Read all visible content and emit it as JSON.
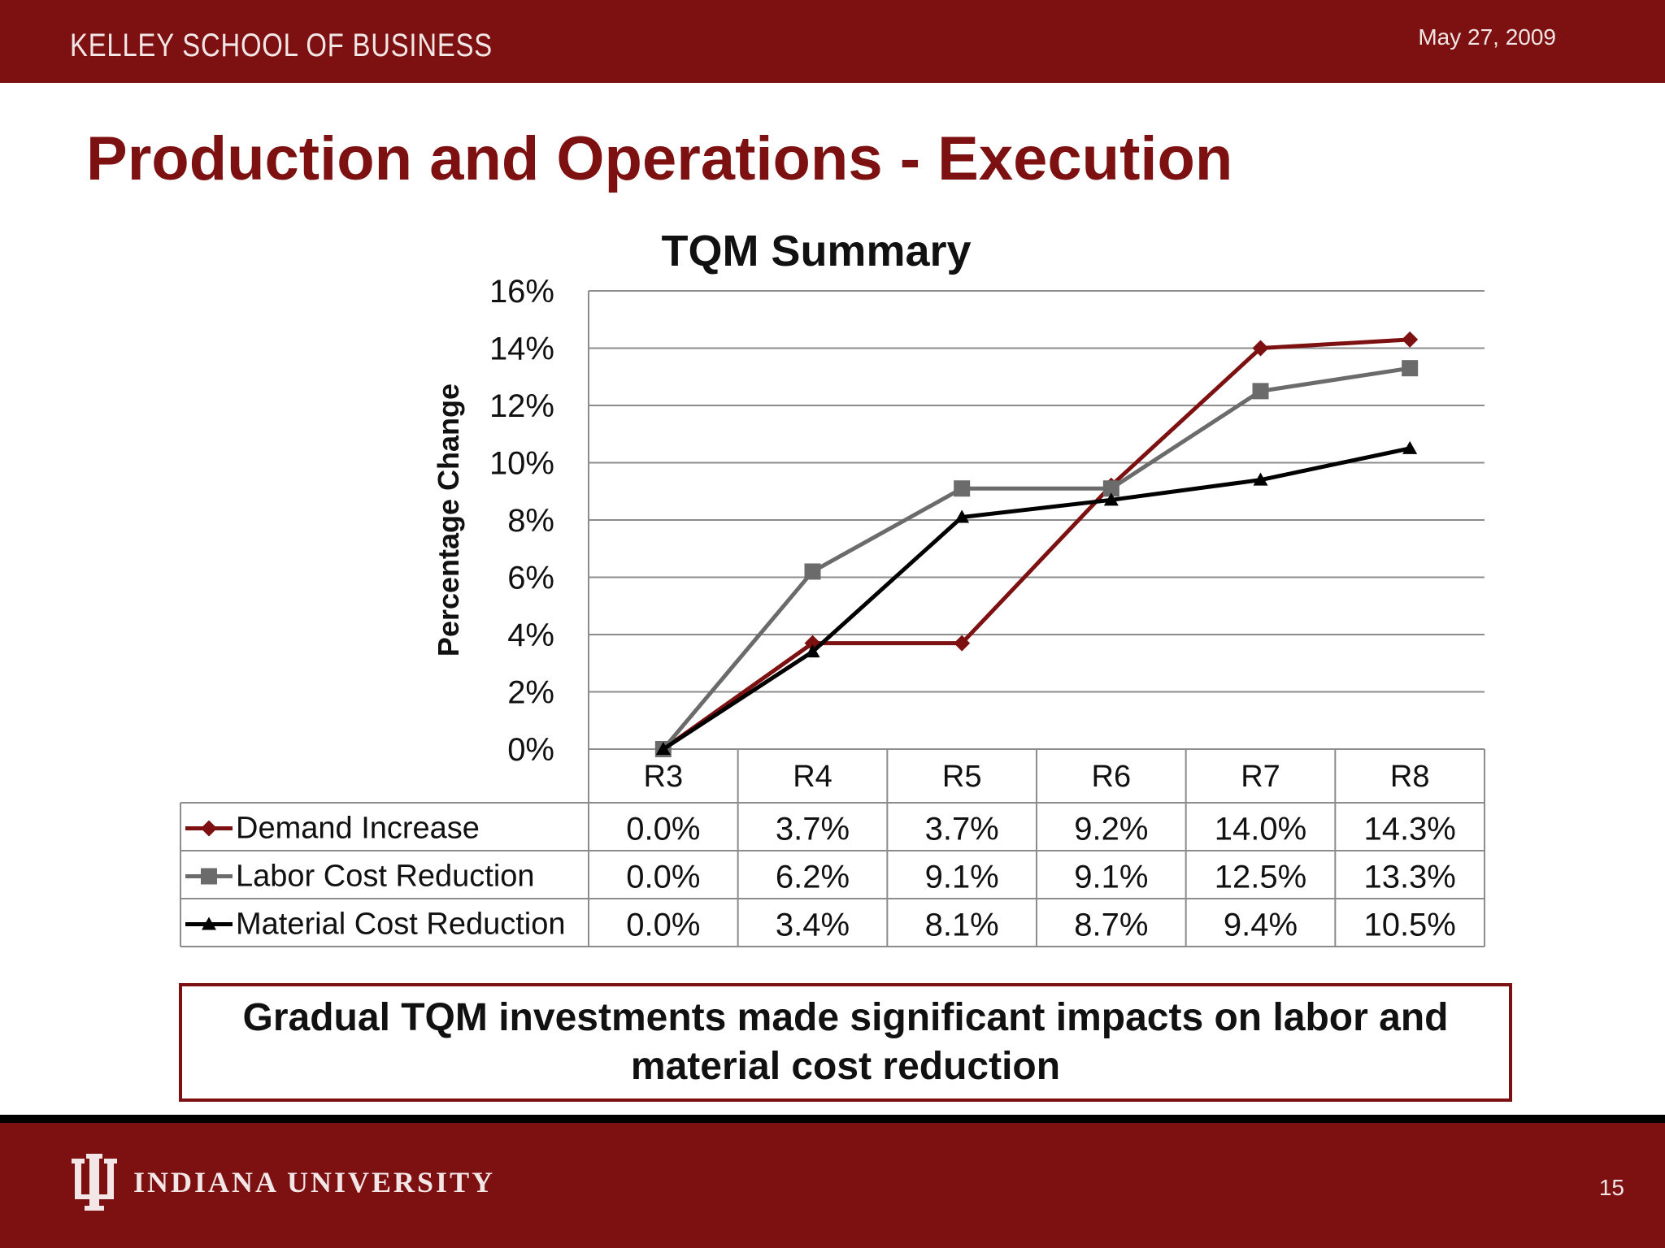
{
  "header": {
    "school": "KELLEY SCHOOL OF BUSINESS",
    "date": "May 27, 2009",
    "title": "Production and Operations - Execution",
    "brand_color": "#7d1111"
  },
  "chart_data": {
    "type": "line",
    "title": "TQM Summary",
    "ylabel": "Percentage Change",
    "xlabel": "",
    "categories": [
      "R3",
      "R4",
      "R5",
      "R6",
      "R7",
      "R8"
    ],
    "ylim": [
      0,
      16
    ],
    "yticks": [
      0,
      2,
      4,
      6,
      8,
      10,
      12,
      14,
      16
    ],
    "ytick_labels": [
      "0%",
      "2%",
      "4%",
      "6%",
      "8%",
      "10%",
      "12%",
      "14%",
      "16%"
    ],
    "grid": true,
    "legend": "data-table",
    "series": [
      {
        "name": "Demand Increase",
        "color": "#7d1111",
        "marker": "diamond",
        "values": [
          0.0,
          3.7,
          3.7,
          9.2,
          14.0,
          14.3
        ],
        "labels": [
          "0.0%",
          "3.7%",
          "3.7%",
          "9.2%",
          "14.0%",
          "14.3%"
        ]
      },
      {
        "name": "Labor Cost Reduction",
        "color": "#6b6b6b",
        "marker": "square",
        "values": [
          0.0,
          6.2,
          9.1,
          9.1,
          12.5,
          13.3
        ],
        "labels": [
          "0.0%",
          "6.2%",
          "9.1%",
          "9.1%",
          "12.5%",
          "13.3%"
        ]
      },
      {
        "name": "Material Cost Reduction",
        "color": "#000000",
        "marker": "triangle",
        "values": [
          0.0,
          3.4,
          8.1,
          8.7,
          9.4,
          10.5
        ],
        "labels": [
          "0.0%",
          "3.4%",
          "8.1%",
          "8.7%",
          "9.4%",
          "10.5%"
        ]
      }
    ]
  },
  "callout": {
    "line1": "Gradual TQM investments made significant impacts on labor and",
    "line2": "material cost reduction"
  },
  "footer": {
    "university": "INDIANA UNIVERSITY",
    "page_number": "15"
  }
}
